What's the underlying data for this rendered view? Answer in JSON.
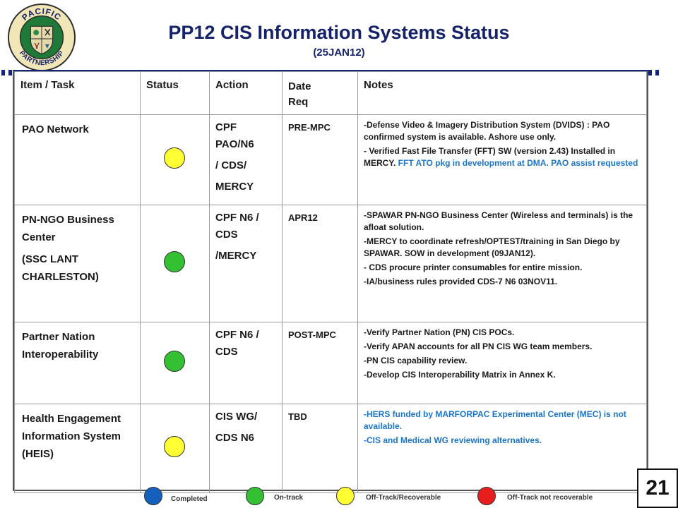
{
  "header": {
    "title": "PP12 CIS Information Systems Status",
    "subtitle": "(25JAN12)",
    "logo": {
      "icon": "pacific-partnership-seal",
      "top_text": "PACIFIC",
      "bottom_text": "PARTNERSHIP"
    }
  },
  "table": {
    "columns": [
      "Item / Task",
      "Status",
      "Action",
      "Date Req",
      "Notes"
    ],
    "rows": [
      {
        "item": [
          "PAO Network"
        ],
        "status": "Off-Track/Recoverable",
        "status_color": "#ffff33",
        "action": [
          "CPF PAO/N6",
          "/ CDS/",
          "MERCY"
        ],
        "date_req": "PRE-MPC",
        "notes": [
          {
            "text": "-Defense Video & Imagery Distribution System (DVIDS) : PAO confirmed system is available. Ashore use only.",
            "highlight": ""
          },
          {
            "text": "- Verified Fast File Transfer (FFT) SW (version 2.43) Installed in MERCY.",
            "highlight": " FFT ATO pkg in development at DMA. PAO assist requested"
          }
        ]
      },
      {
        "item": [
          "PN-NGO Business Center",
          "(SSC LANT CHARLESTON)"
        ],
        "status": "On-track",
        "status_color": "#33c133",
        "action": [
          "CPF N6 / CDS",
          "/MERCY"
        ],
        "date_req": "APR12",
        "notes": [
          {
            "text": "-SPAWAR PN-NGO Business Center (Wireless and terminals) is the afloat solution.",
            "highlight": ""
          },
          {
            "text": "-MERCY to coordinate refresh/OPTEST/training in San Diego by SPAWAR. SOW in development (09JAN12).",
            "highlight": ""
          },
          {
            "text": "- CDS procure printer consumables for entire mission.",
            "highlight": ""
          },
          {
            "text": "-IA/business rules provided CDS-7 N6 03NOV11.",
            "highlight": ""
          }
        ]
      },
      {
        "item": [
          "Partner Nation Interoperability"
        ],
        "status": "On-track",
        "status_color": "#33c133",
        "action": [
          "CPF N6 / CDS"
        ],
        "date_req": "POST-MPC",
        "notes": [
          {
            "text": "-Verify Partner Nation (PN) CIS POCs.",
            "highlight": ""
          },
          {
            "text": "-Verify APAN accounts for all PN CIS WG team members.",
            "highlight": ""
          },
          {
            "text": "-PN CIS capability review.",
            "highlight": ""
          },
          {
            "text": "-Develop CIS Interoperability Matrix in Annex K.",
            "highlight": ""
          }
        ]
      },
      {
        "item": [
          "Health Engagement Information System (HEIS)"
        ],
        "status": "Off-Track/Recoverable",
        "status_color": "#ffff33",
        "action": [
          "CIS WG/",
          "CDS N6"
        ],
        "date_req": "TBD",
        "notes": [
          {
            "text": "",
            "highlight": "-HERS funded by MARFORPAC Experimental Center (MEC) is not available."
          },
          {
            "text": "",
            "highlight": "-CIS and Medical WG reviewing alternatives."
          }
        ]
      }
    ]
  },
  "legend": [
    {
      "label": "Completed",
      "color": "#1560bd"
    },
    {
      "label": "On-track",
      "color": "#33c133"
    },
    {
      "label": "Off-Track/Recoverable",
      "color": "#ffff33"
    },
    {
      "label": "Off-Track not recoverable",
      "color": "#e81e1e"
    }
  ],
  "page_number": "21",
  "colors": {
    "title": "#16236a",
    "note_highlight": "#1b75c8"
  }
}
